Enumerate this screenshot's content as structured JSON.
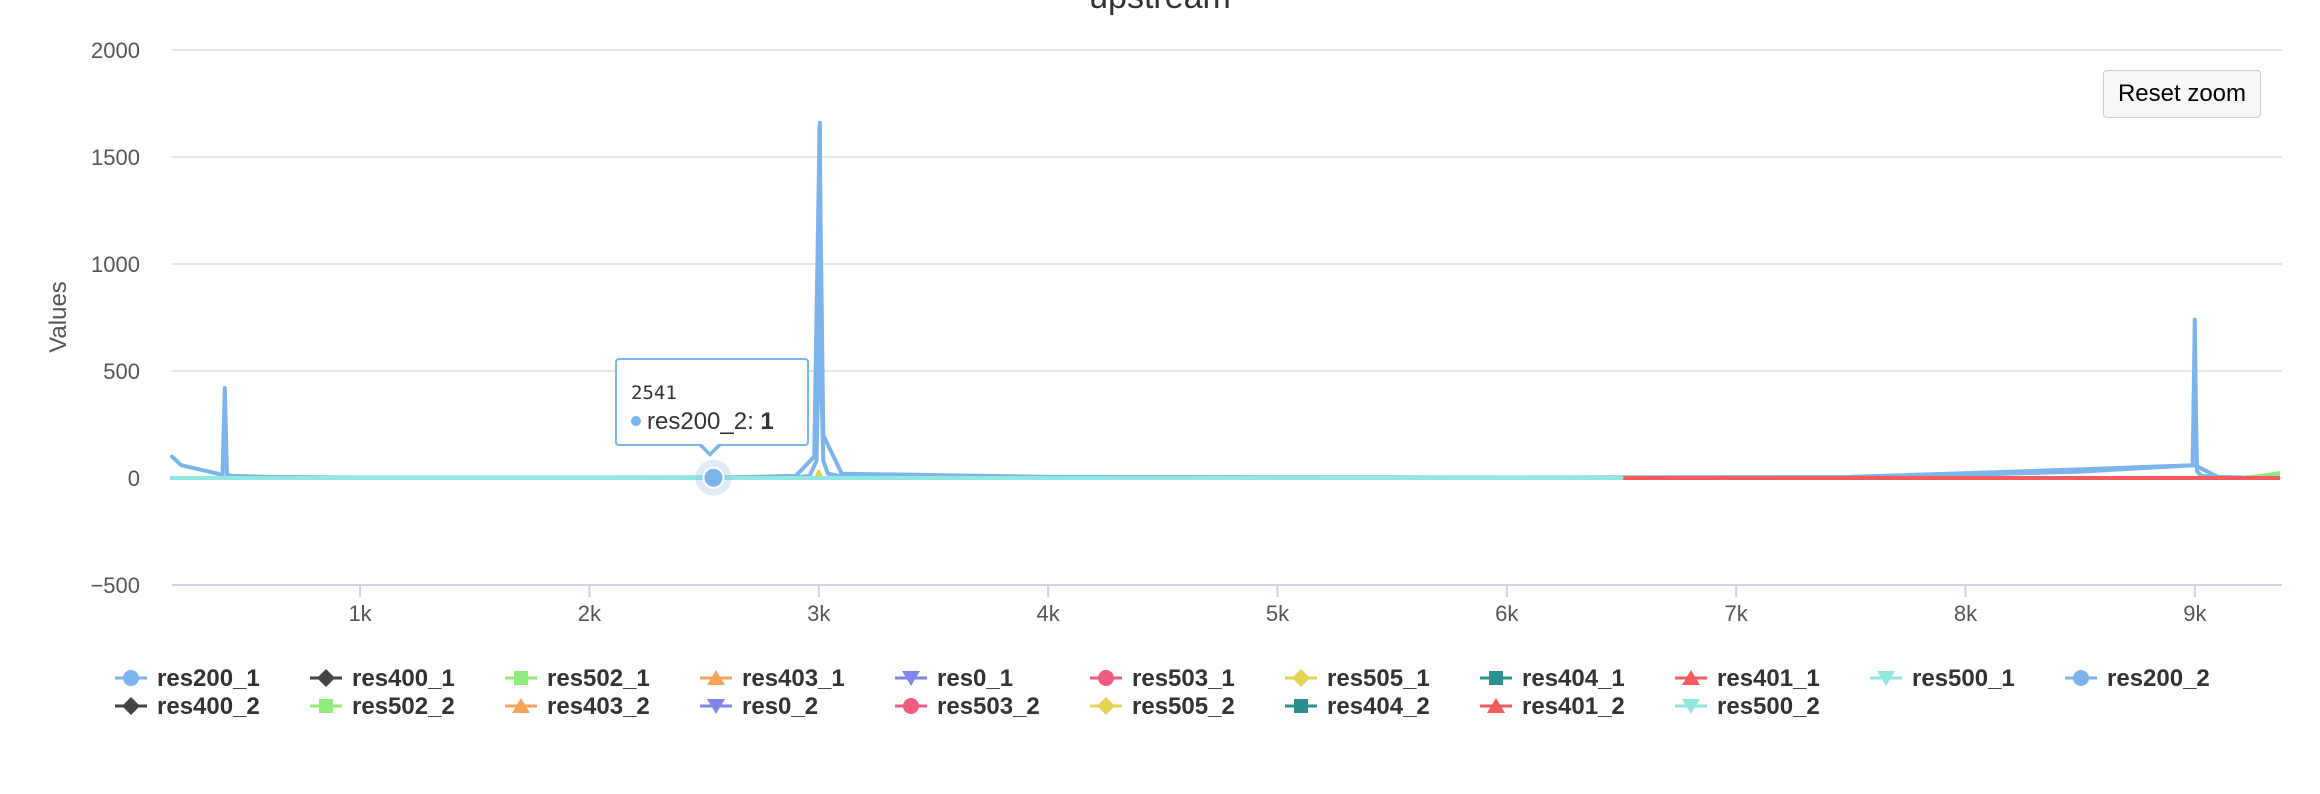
{
  "chart_data": {
    "type": "line",
    "title": "upstream",
    "xlabel": "",
    "ylabel": "Values",
    "xlim": [
      180,
      9380
    ],
    "ylim": [
      -500,
      2000
    ],
    "y_ticks": [
      -500,
      0,
      500,
      1000,
      1500,
      2000
    ],
    "y_tick_labels": [
      "−500",
      "0",
      "500",
      "1000",
      "1500",
      "2000"
    ],
    "x_ticks": [
      1000,
      2000,
      3000,
      4000,
      5000,
      6000,
      7000,
      8000,
      9000
    ],
    "x_tick_labels": [
      "1k",
      "2k",
      "3k",
      "4k",
      "5k",
      "6k",
      "7k",
      "8k",
      "9k"
    ],
    "grid": "horizontal",
    "legend_position": "bottom",
    "series": [
      {
        "name": "res200_1",
        "color": "#7cb5ec",
        "marker": "circle",
        "x": [
          180,
          220,
          300,
          380,
          400,
          410,
          420,
          440,
          600,
          1000,
          2000,
          2900,
          2960,
          2990,
          3000,
          3005,
          3010,
          3020,
          3040,
          3100,
          3400,
          4000,
          6000,
          7500,
          8500,
          8990,
          9000,
          9005,
          9010,
          9030,
          9100,
          9200
        ],
        "y": [
          100,
          60,
          40,
          20,
          10,
          420,
          15,
          10,
          5,
          2,
          2,
          3,
          10,
          80,
          600,
          1660,
          500,
          80,
          20,
          8,
          3,
          2,
          2,
          5,
          40,
          60,
          740,
          300,
          30,
          10,
          5,
          3
        ]
      },
      {
        "name": "res400_1",
        "color": "#434348",
        "marker": "diamond",
        "x": [
          180,
          9380
        ],
        "y": [
          0,
          0
        ]
      },
      {
        "name": "res502_1",
        "color": "#90ed7d",
        "marker": "square",
        "x": [
          9200,
          9300,
          9380
        ],
        "y": [
          0,
          10,
          25
        ]
      },
      {
        "name": "res403_1",
        "color": "#f7a35c",
        "marker": "triangle",
        "x": [
          9000,
          9150
        ],
        "y": [
          0,
          0
        ]
      },
      {
        "name": "res0_1",
        "color": "#8085e9",
        "marker": "triangle-down",
        "x": [
          180,
          9380
        ],
        "y": [
          0,
          0
        ]
      },
      {
        "name": "res503_1",
        "color": "#f15c80",
        "marker": "circle",
        "x": [
          180,
          9380
        ],
        "y": [
          0,
          0
        ]
      },
      {
        "name": "res505_1",
        "color": "#e4d354",
        "marker": "diamond",
        "x": [
          2990,
          3000,
          3010
        ],
        "y": [
          0,
          30,
          0
        ]
      },
      {
        "name": "res404_1",
        "color": "#2b908f",
        "marker": "square",
        "x": [
          180,
          9380
        ],
        "y": [
          0,
          0
        ]
      },
      {
        "name": "res401_1",
        "color": "#f45b5b",
        "marker": "triangle",
        "x": [
          180,
          9380
        ],
        "y": [
          0,
          0
        ]
      },
      {
        "name": "res500_1",
        "color": "#91e8e1",
        "marker": "triangle-down",
        "x": [
          180,
          9380
        ],
        "y": [
          0,
          0
        ]
      },
      {
        "name": "res200_2",
        "color": "#7cb5ec",
        "marker": "circle",
        "x": [
          180,
          1000,
          2000,
          2541,
          2900,
          2980,
          3000,
          3003,
          3020,
          3100,
          4000,
          6000,
          7600,
          8500,
          9000,
          9100
        ],
        "y": [
          0,
          1,
          1,
          1,
          10,
          100,
          1400,
          1640,
          200,
          20,
          5,
          2,
          3,
          30,
          60,
          5
        ]
      },
      {
        "name": "res400_2",
        "color": "#434348",
        "marker": "diamond",
        "x": [
          180,
          9380
        ],
        "y": [
          0,
          0
        ]
      },
      {
        "name": "res502_2",
        "color": "#90ed7d",
        "marker": "square",
        "x": [
          9200,
          9380
        ],
        "y": [
          0,
          20
        ]
      },
      {
        "name": "res403_2",
        "color": "#f7a35c",
        "marker": "triangle",
        "x": [
          9000,
          9150
        ],
        "y": [
          0,
          0
        ]
      },
      {
        "name": "res0_2",
        "color": "#8085e9",
        "marker": "triangle-down",
        "x": [
          180,
          9380
        ],
        "y": [
          0,
          0
        ]
      },
      {
        "name": "res503_2",
        "color": "#f15c80",
        "marker": "circle",
        "x": [
          180,
          9380
        ],
        "y": [
          0,
          0
        ]
      },
      {
        "name": "res505_2",
        "color": "#e4d354",
        "marker": "diamond",
        "x": [
          2990,
          3000,
          3010
        ],
        "y": [
          0,
          20,
          0
        ]
      },
      {
        "name": "res404_2",
        "color": "#2b908f",
        "marker": "square",
        "x": [
          180,
          9380
        ],
        "y": [
          0,
          0
        ]
      },
      {
        "name": "res401_2",
        "color": "#f45b5b",
        "marker": "triangle",
        "x": [
          180,
          9380
        ],
        "y": [
          0,
          0
        ]
      },
      {
        "name": "res500_2",
        "color": "#91e8e1",
        "marker": "triangle-down",
        "x": [
          180,
          6500
        ],
        "y": [
          0,
          0
        ]
      }
    ],
    "highlighted_point": {
      "series": "res200_2",
      "x": 2541,
      "y": 1
    }
  },
  "tooltip": {
    "header": "2541",
    "series_name": "res200_2",
    "separator": ":",
    "value": "1",
    "color": "#7cb5ec"
  },
  "reset_zoom_label": "Reset zoom"
}
